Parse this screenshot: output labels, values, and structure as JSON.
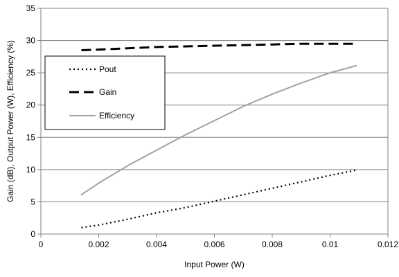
{
  "chart_data": {
    "type": "line",
    "title": "",
    "xlabel": "Input Power (W)",
    "ylabel": "Gain (dB), Output Power (W), Efficiency (%)",
    "xlim": [
      0,
      0.012
    ],
    "ylim": [
      0,
      35
    ],
    "x_ticks": [
      "0",
      "0.002",
      "0.004",
      "0.006",
      "0.008",
      "0.01",
      "0.012"
    ],
    "y_ticks": [
      "0",
      "5",
      "10",
      "15",
      "20",
      "25",
      "30",
      "35"
    ],
    "grid": "horizontal",
    "legend_position": "left",
    "series": [
      {
        "name": "Pout",
        "style": "dotted",
        "color": "#000000",
        "x": [
          0.0014,
          0.002,
          0.003,
          0.004,
          0.005,
          0.006,
          0.007,
          0.008,
          0.009,
          0.01,
          0.0109
        ],
        "y": [
          1.0,
          1.4,
          2.3,
          3.3,
          4.1,
          5.1,
          6.1,
          7.1,
          8.1,
          9.1,
          9.9
        ]
      },
      {
        "name": "Gain",
        "style": "dashed",
        "color": "#000000",
        "x": [
          0.0014,
          0.002,
          0.003,
          0.004,
          0.005,
          0.006,
          0.007,
          0.008,
          0.009,
          0.01,
          0.0109
        ],
        "y": [
          28.5,
          28.6,
          28.8,
          29.0,
          29.1,
          29.2,
          29.3,
          29.4,
          29.5,
          29.5,
          29.5
        ]
      },
      {
        "name": "Efficiency",
        "style": "solid",
        "color": "#a0a0a0",
        "x": [
          0.0014,
          0.002,
          0.003,
          0.004,
          0.005,
          0.006,
          0.007,
          0.008,
          0.009,
          0.01,
          0.0109
        ],
        "y": [
          6.1,
          7.9,
          10.6,
          13.0,
          15.4,
          17.6,
          19.8,
          21.7,
          23.4,
          25.0,
          26.1
        ]
      }
    ]
  }
}
